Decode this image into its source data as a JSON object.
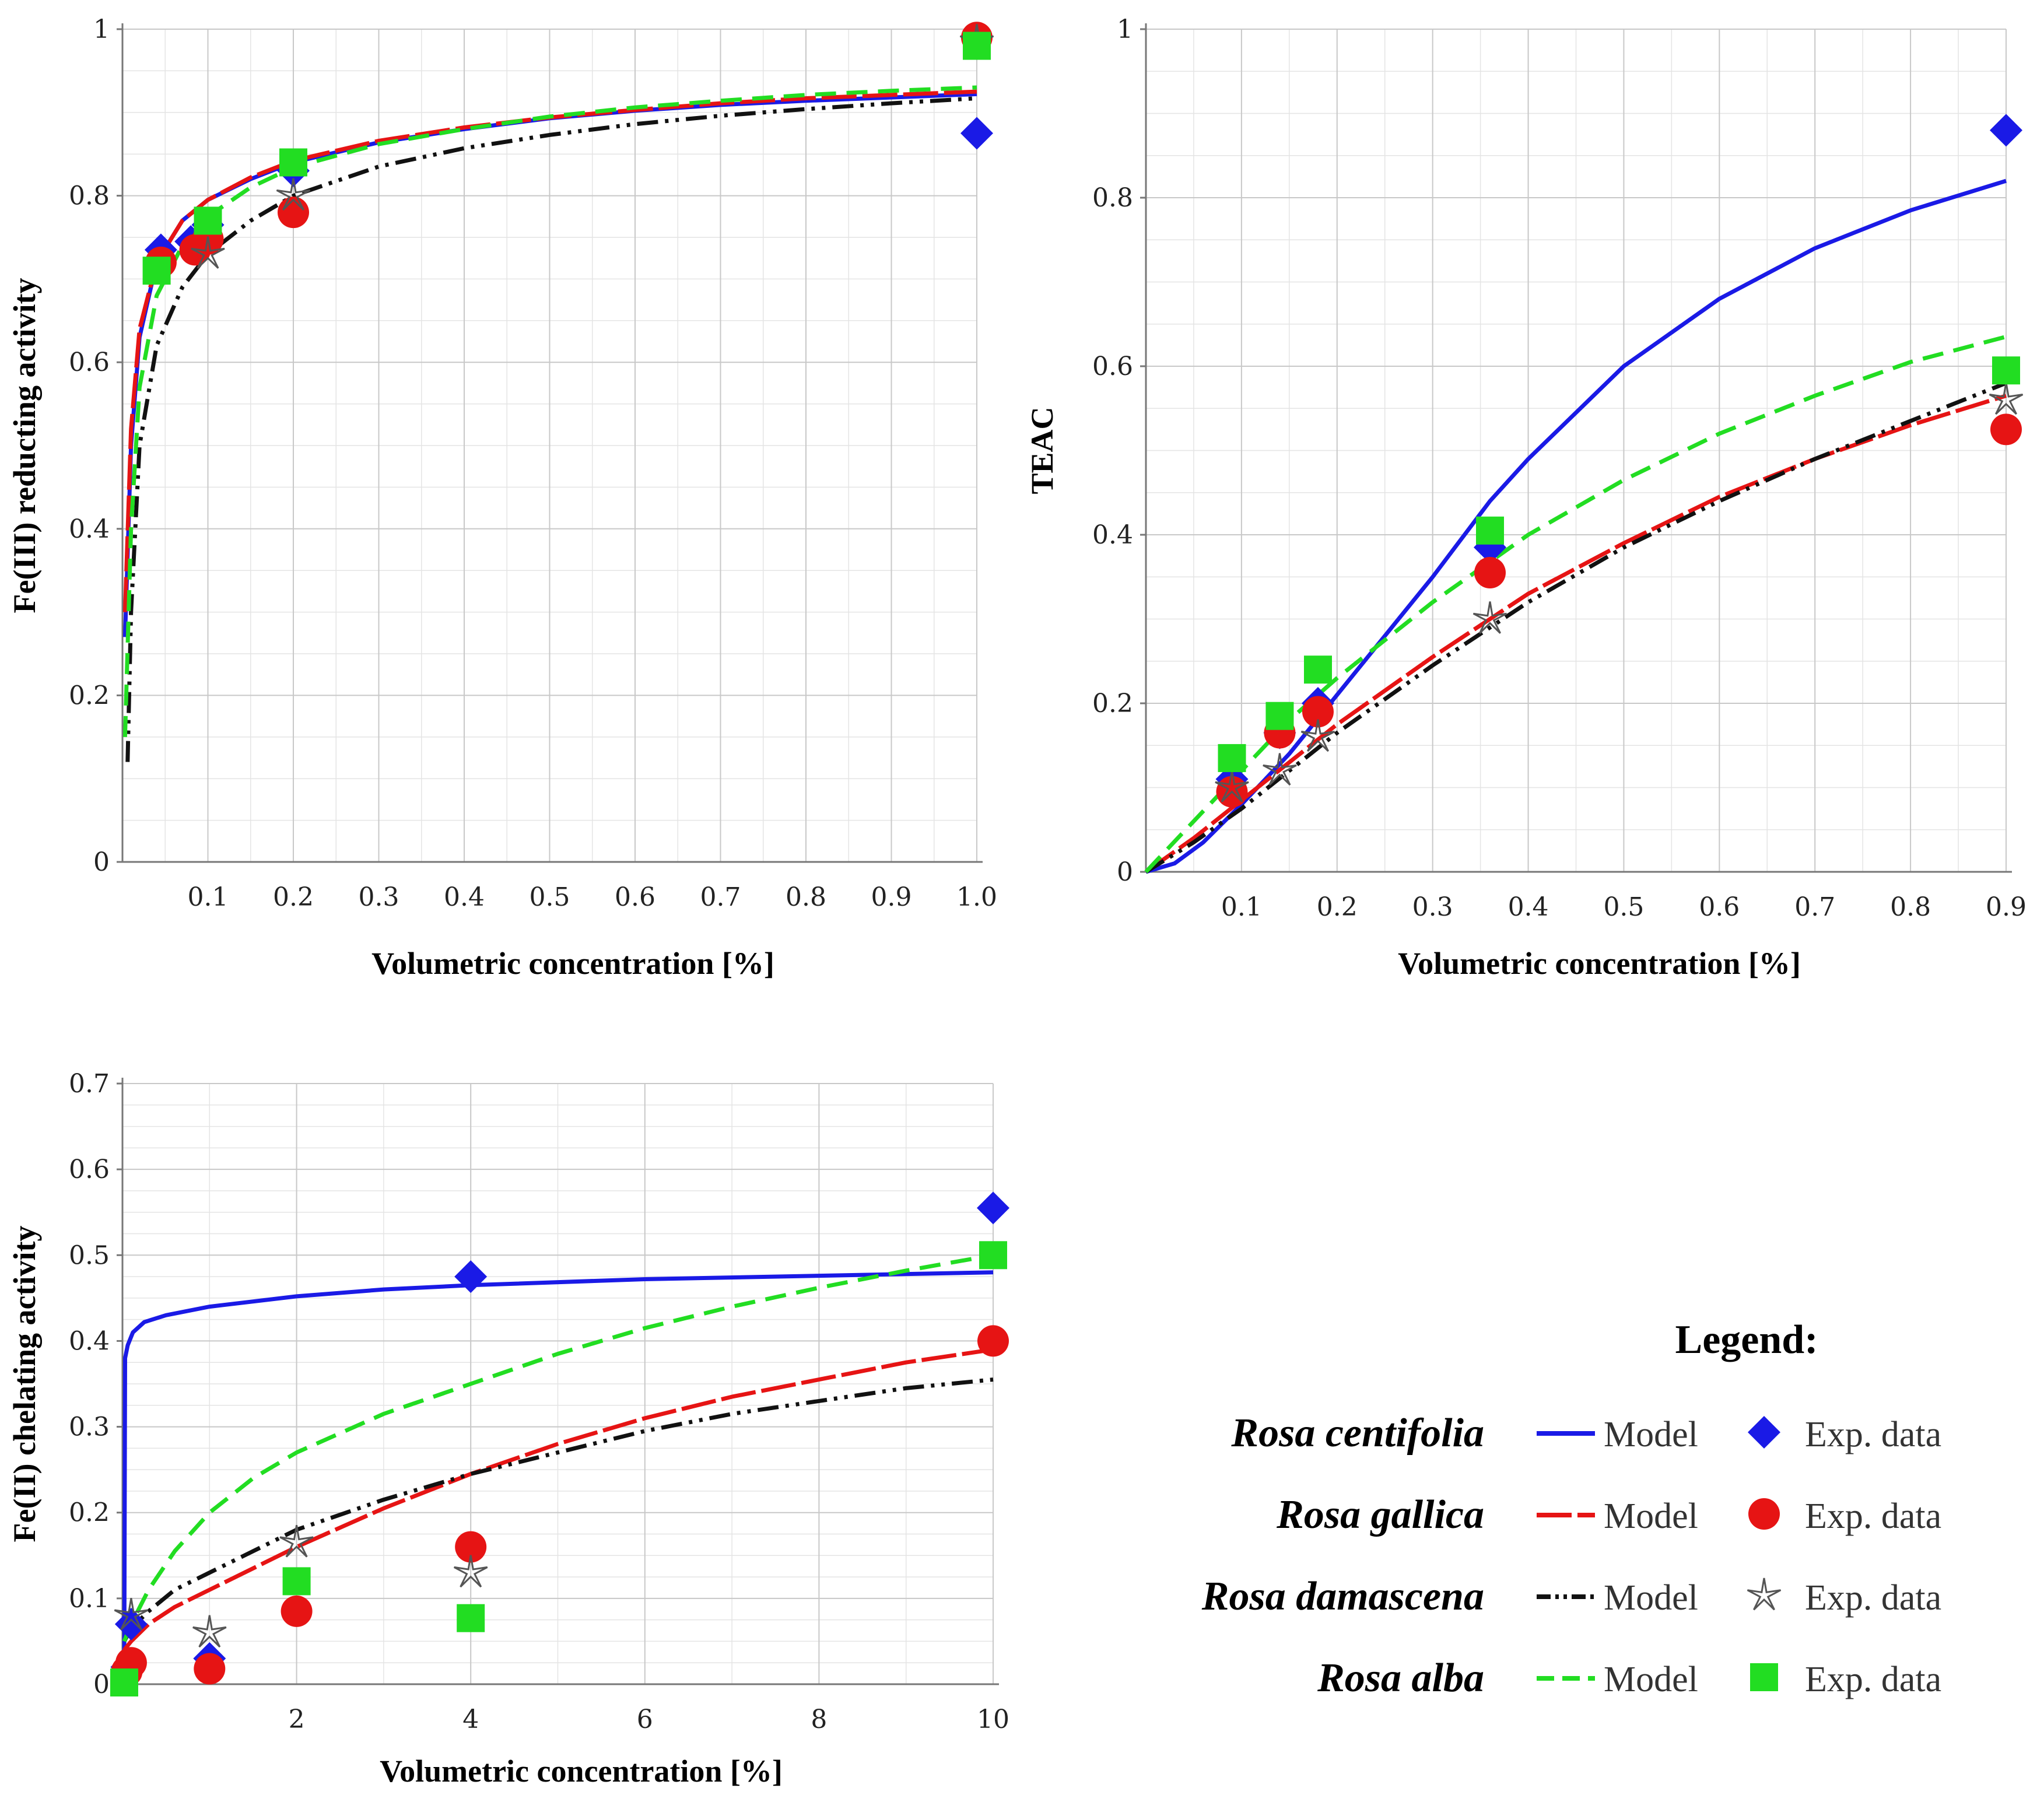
{
  "series_style": {
    "Rosa centifolia": {
      "color": "#1a1ae6",
      "dash": "",
      "marker": "diamond"
    },
    "Rosa gallica": {
      "color": "#e61414",
      "dash": "60 10",
      "marker": "circle"
    },
    "Rosa damascena": {
      "color": "#111111",
      "dash": "36 12 6 12 6 12",
      "marker": "star"
    },
    "Rosa alba": {
      "color": "#22dd22",
      "dash": "36 18",
      "marker": "square"
    }
  },
  "chart_data": [
    {
      "id": "frap",
      "type": "line+scatter",
      "ylabel": "Fe(III) reducting activity",
      "xlabel": "Volumetric concentration [%]",
      "xlim": [
        0,
        1.0
      ],
      "ylim": [
        0,
        1
      ],
      "xticks": [
        0.1,
        0.2,
        0.3,
        0.4,
        0.5,
        0.6,
        0.7,
        0.8,
        0.9,
        1.0
      ],
      "xtick_labels": [
        "0.1",
        "0.2",
        "0.3",
        "0.4",
        "0.5",
        "0.6",
        "0.7",
        "0.8",
        "0.9",
        "1.0"
      ],
      "yticks": [
        0,
        0.2,
        0.4,
        0.6,
        0.8,
        1
      ],
      "ytick_labels": [
        "0",
        "0.2",
        "0.4",
        "0.6",
        "0.8",
        "1"
      ],
      "series": [
        {
          "name": "Rosa centifolia",
          "model": {
            "x": [
              0.003,
              0.01,
              0.02,
              0.04,
              0.07,
              0.1,
              0.15,
              0.2,
              0.3,
              0.4,
              0.5,
              0.6,
              0.7,
              0.8,
              0.9,
              1.0
            ],
            "y": [
              0.27,
              0.5,
              0.63,
              0.72,
              0.77,
              0.795,
              0.82,
              0.84,
              0.864,
              0.88,
              0.893,
              0.902,
              0.909,
              0.914,
              0.918,
              0.922
            ]
          },
          "points": {
            "x": [
              0.045,
              0.08,
              0.1,
              0.2,
              1.0
            ],
            "y": [
              0.735,
              0.745,
              0.765,
              0.83,
              0.875
            ]
          }
        },
        {
          "name": "Rosa gallica",
          "model": {
            "x": [
              0.003,
              0.01,
              0.02,
              0.04,
              0.07,
              0.1,
              0.15,
              0.2,
              0.3,
              0.4,
              0.5,
              0.6,
              0.7,
              0.8,
              0.9,
              1.0
            ],
            "y": [
              0.3,
              0.52,
              0.64,
              0.72,
              0.77,
              0.795,
              0.822,
              0.842,
              0.866,
              0.882,
              0.894,
              0.903,
              0.911,
              0.917,
              0.921,
              0.925
            ]
          },
          "points": {
            "x": [
              0.045,
              0.085,
              0.1,
              0.2,
              1.0
            ],
            "y": [
              0.72,
              0.735,
              0.748,
              0.78,
              0.99
            ]
          }
        },
        {
          "name": "Rosa damascena",
          "model": {
            "x": [
              0.006,
              0.01,
              0.02,
              0.04,
              0.07,
              0.1,
              0.15,
              0.2,
              0.3,
              0.4,
              0.5,
              0.6,
              0.7,
              0.8,
              0.9,
              1.0
            ],
            "y": [
              0.12,
              0.3,
              0.5,
              0.62,
              0.69,
              0.73,
              0.77,
              0.8,
              0.835,
              0.857,
              0.873,
              0.886,
              0.896,
              0.904,
              0.911,
              0.917
            ]
          },
          "points": {
            "x": [
              0.1,
              0.2,
              1.0
            ],
            "y": [
              0.73,
              0.8,
              0.985
            ]
          }
        },
        {
          "name": "Rosa alba",
          "model": {
            "x": [
              0.003,
              0.01,
              0.02,
              0.04,
              0.07,
              0.1,
              0.15,
              0.2,
              0.3,
              0.4,
              0.5,
              0.6,
              0.7,
              0.8,
              0.9,
              1.0
            ],
            "y": [
              0.15,
              0.4,
              0.57,
              0.68,
              0.74,
              0.775,
              0.81,
              0.834,
              0.862,
              0.88,
              0.895,
              0.906,
              0.914,
              0.921,
              0.926,
              0.93
            ]
          },
          "points": {
            "x": [
              0.04,
              0.1,
              0.2,
              1.0
            ],
            "y": [
              0.71,
              0.77,
              0.84,
              0.98
            ]
          }
        }
      ]
    },
    {
      "id": "teac",
      "type": "line+scatter",
      "ylabel": "TEAC",
      "xlabel": "Volumetric concentration [%]",
      "xlim": [
        0,
        0.9
      ],
      "ylim": [
        0,
        1
      ],
      "xticks": [
        0.1,
        0.2,
        0.3,
        0.4,
        0.5,
        0.6,
        0.7,
        0.8,
        0.9
      ],
      "xtick_labels": [
        "0.1",
        "0.2",
        "0.3",
        "0.4",
        "0.5",
        "0.6",
        "0.7",
        "0.8",
        "0.9"
      ],
      "yticks": [
        0,
        0.2,
        0.4,
        0.6,
        0.8,
        1
      ],
      "ytick_labels": [
        "0",
        "0.2",
        "0.4",
        "0.6",
        "0.8",
        "1"
      ],
      "series": [
        {
          "name": "Rosa centifolia",
          "model": {
            "x": [
              0,
              0.03,
              0.06,
              0.1,
              0.15,
              0.2,
              0.25,
              0.3,
              0.36,
              0.4,
              0.5,
              0.6,
              0.7,
              0.8,
              0.9
            ],
            "y": [
              0,
              0.01,
              0.035,
              0.08,
              0.14,
              0.21,
              0.28,
              0.35,
              0.44,
              0.49,
              0.6,
              0.68,
              0.74,
              0.785,
              0.82
            ]
          },
          "points": {
            "x": [
              0.09,
              0.14,
              0.18,
              0.36,
              0.9
            ],
            "y": [
              0.11,
              0.165,
              0.2,
              0.385,
              0.88
            ]
          }
        },
        {
          "name": "Rosa gallica",
          "model": {
            "x": [
              0,
              0.05,
              0.1,
              0.15,
              0.2,
              0.3,
              0.4,
              0.5,
              0.6,
              0.7,
              0.8,
              0.9
            ],
            "y": [
              0,
              0.04,
              0.085,
              0.13,
              0.175,
              0.255,
              0.33,
              0.39,
              0.445,
              0.49,
              0.53,
              0.565
            ]
          },
          "points": {
            "x": [
              0.09,
              0.14,
              0.18,
              0.36,
              0.9
            ],
            "y": [
              0.095,
              0.165,
              0.19,
              0.355,
              0.525
            ]
          }
        },
        {
          "name": "Rosa damascena",
          "model": {
            "x": [
              0,
              0.05,
              0.1,
              0.15,
              0.2,
              0.3,
              0.4,
              0.5,
              0.6,
              0.7,
              0.8,
              0.9
            ],
            "y": [
              0,
              0.035,
              0.075,
              0.12,
              0.165,
              0.245,
              0.32,
              0.385,
              0.44,
              0.49,
              0.535,
              0.58
            ]
          },
          "points": {
            "x": [
              0.09,
              0.14,
              0.18,
              0.36,
              0.9
            ],
            "y": [
              0.1,
              0.12,
              0.16,
              0.3,
              0.56
            ]
          }
        },
        {
          "name": "Rosa alba",
          "model": {
            "x": [
              0,
              0.05,
              0.1,
              0.15,
              0.2,
              0.3,
              0.4,
              0.5,
              0.6,
              0.7,
              0.8,
              0.9
            ],
            "y": [
              0,
              0.06,
              0.12,
              0.18,
              0.23,
              0.32,
              0.4,
              0.465,
              0.52,
              0.565,
              0.605,
              0.635
            ]
          },
          "points": {
            "x": [
              0.09,
              0.14,
              0.18,
              0.36,
              0.9
            ],
            "y": [
              0.135,
              0.185,
              0.24,
              0.405,
              0.595
            ]
          }
        }
      ]
    },
    {
      "id": "chelating",
      "type": "line+scatter",
      "ylabel": "Fe(II) chelating activity",
      "xlabel": "Volumetric concentration [%]",
      "xlim": [
        0,
        10
      ],
      "ylim": [
        0,
        0.7
      ],
      "xticks": [
        2,
        4,
        6,
        8,
        10
      ],
      "xtick_labels": [
        "2",
        "4",
        "6",
        "8",
        "10"
      ],
      "yticks": [
        0,
        0.1,
        0.2,
        0.3,
        0.4,
        0.5,
        0.6,
        0.7
      ],
      "ytick_labels": [
        "0",
        "0.1",
        "0.2",
        "0.3",
        "0.4",
        "0.5",
        "0.6",
        "0.7"
      ],
      "series": [
        {
          "name": "Rosa centifolia",
          "model": {
            "x": [
              0.02,
              0.03,
              0.06,
              0.12,
              0.25,
              0.5,
              1,
              2,
              3,
              4,
              6,
              8,
              10
            ],
            "y": [
              0,
              0.38,
              0.395,
              0.41,
              0.422,
              0.43,
              0.44,
              0.452,
              0.46,
              0.465,
              0.472,
              0.476,
              0.48
            ]
          },
          "points": {
            "x": [
              0.05,
              0.1,
              1,
              4,
              10
            ],
            "y": [
              0.02,
              0.07,
              0.03,
              0.475,
              0.555
            ]
          }
        },
        {
          "name": "Rosa gallica",
          "model": {
            "x": [
              0.02,
              0.1,
              0.3,
              0.6,
              1,
              2,
              3,
              4,
              5,
              6,
              7,
              8,
              9,
              10
            ],
            "y": [
              0.04,
              0.05,
              0.07,
              0.09,
              0.11,
              0.16,
              0.205,
              0.245,
              0.28,
              0.31,
              0.335,
              0.355,
              0.375,
              0.39
            ]
          },
          "points": {
            "x": [
              0.05,
              0.1,
              1,
              2,
              4,
              10
            ],
            "y": [
              0.015,
              0.025,
              0.018,
              0.085,
              0.16,
              0.4
            ]
          }
        },
        {
          "name": "Rosa damascena",
          "model": {
            "x": [
              0.02,
              0.1,
              0.3,
              0.6,
              1,
              2,
              3,
              4,
              5,
              6,
              7,
              8,
              9,
              10
            ],
            "y": [
              0.05,
              0.065,
              0.085,
              0.11,
              0.13,
              0.18,
              0.215,
              0.245,
              0.27,
              0.295,
              0.315,
              0.33,
              0.345,
              0.355
            ]
          },
          "points": {
            "x": [
              0.1,
              1,
              2,
              4
            ],
            "y": [
              0.08,
              0.06,
              0.165,
              0.13
            ]
          }
        },
        {
          "name": "Rosa alba",
          "model": {
            "x": [
              0.02,
              0.1,
              0.3,
              0.6,
              1,
              1.5,
              2,
              3,
              4,
              5,
              6,
              7,
              8,
              9,
              10
            ],
            "y": [
              0.05,
              0.07,
              0.11,
              0.155,
              0.2,
              0.24,
              0.27,
              0.315,
              0.35,
              0.385,
              0.415,
              0.44,
              0.462,
              0.482,
              0.5
            ]
          },
          "points": {
            "x": [
              0.02,
              2,
              4,
              10
            ],
            "y": [
              0.002,
              0.12,
              0.077,
              0.5
            ]
          }
        }
      ]
    }
  ],
  "legend": {
    "title": "Legend:",
    "model_label": "Model",
    "exp_label": "Exp. data",
    "rows": [
      {
        "species": "Rosa centifolia"
      },
      {
        "species": "Rosa gallica"
      },
      {
        "species": "Rosa damascena"
      },
      {
        "species": "Rosa alba"
      }
    ]
  }
}
